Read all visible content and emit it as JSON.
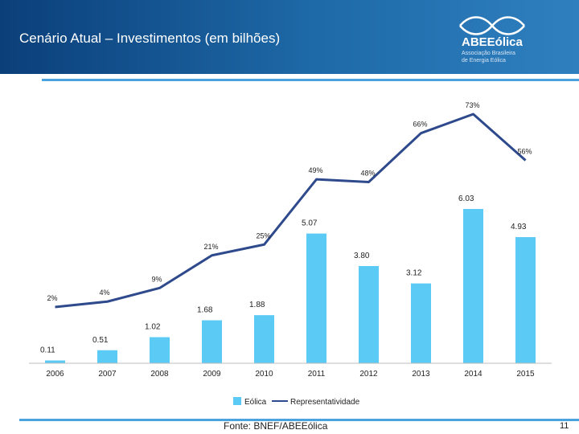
{
  "header": {
    "title": "Cenário Atual – Investimentos (em bilhões)",
    "logo_name": "ABEEólica",
    "logo_subtitle_1": "Associação Brasileira",
    "logo_subtitle_2": "de Energia Eólica"
  },
  "colors": {
    "bar": "#5bcbf5",
    "line": "#2e4a8c",
    "header": "#1e6aa8"
  },
  "chart_data": {
    "type": "bar",
    "title": "",
    "categories": [
      "2006",
      "2007",
      "2008",
      "2009",
      "2010",
      "2011",
      "2012",
      "2013",
      "2014",
      "2015"
    ],
    "series": [
      {
        "name": "Eólica",
        "type": "bar",
        "values": [
          0.11,
          0.51,
          1.02,
          1.68,
          1.88,
          5.07,
          3.8,
          3.12,
          6.03,
          4.93
        ],
        "labels": [
          "0.11",
          "0.51",
          "1.02",
          "1.68",
          "1.88",
          "5.07",
          "3.80",
          "3.12",
          "6.03",
          "4.93"
        ]
      },
      {
        "name": "Representatividade",
        "type": "line",
        "values": [
          2,
          4,
          9,
          21,
          25,
          49,
          48,
          66,
          73,
          56
        ],
        "labels": [
          "2%",
          "4%",
          "9%",
          "21%",
          "25%",
          "49%",
          "48%",
          "66%",
          "73%",
          "56%"
        ]
      }
    ],
    "legend": [
      "Eólica",
      "Representatividade"
    ],
    "legend_position": "bottom",
    "xlabel": "",
    "ylabel": "",
    "ylim_bars": [
      0,
      7
    ],
    "ylim_line": [
      0,
      80
    ],
    "grid": false
  },
  "footer": {
    "source": "Fonte: BNEF/ABEEólica",
    "page_number": "11"
  }
}
